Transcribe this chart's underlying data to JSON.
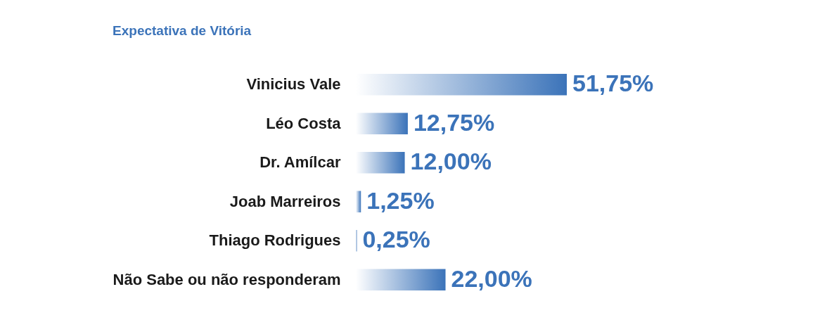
{
  "chart_data": {
    "type": "bar",
    "orientation": "horizontal",
    "title": "Expectativa de Vitória",
    "categories": [
      "Vinicius Vale",
      "Léo Costa",
      "Dr. Amílcar",
      "Joab Marreiros",
      "Thiago Rodrigues",
      "Não Sabe ou não responderam"
    ],
    "values": [
      51.75,
      12.75,
      12.0,
      1.25,
      0.25,
      22.0
    ],
    "value_labels": [
      "51,75%",
      "12,75%",
      "12,00%",
      "1,25%",
      "0,25%",
      "22,00%"
    ],
    "color": "#3b73b9"
  }
}
